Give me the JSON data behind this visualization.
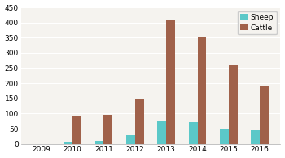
{
  "years": [
    "2009",
    "2010",
    "2011",
    "2012",
    "2013",
    "2014",
    "2015",
    "2016"
  ],
  "sheep": [
    0,
    8,
    10,
    28,
    75,
    72,
    48,
    46
  ],
  "cattle": [
    0,
    90,
    95,
    150,
    410,
    350,
    260,
    190
  ],
  "sheep_color": "#5BC8C8",
  "cattle_color": "#A0614A",
  "ylim": [
    0,
    450
  ],
  "yticks": [
    0,
    50,
    100,
    150,
    200,
    250,
    300,
    350,
    400,
    450
  ],
  "background_color": "#FFFFFF",
  "plot_bg_color": "#F5F3EF",
  "grid_color": "#FFFFFF",
  "bar_width": 0.28,
  "legend_labels": [
    "Sheep",
    "Cattle"
  ]
}
